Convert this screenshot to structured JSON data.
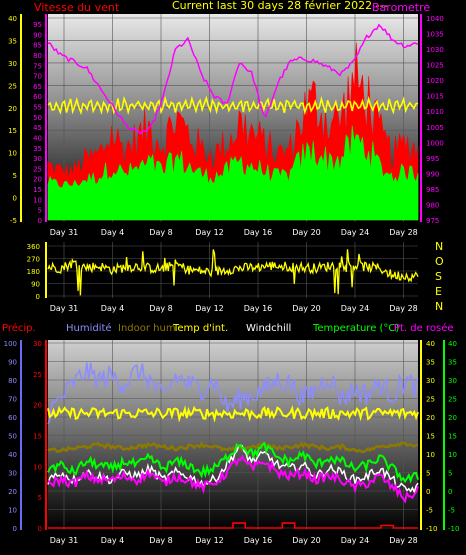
{
  "header": {
    "wind_label": "Vitesse du vent",
    "title": "Current last 30 days 28 février 2022 ---",
    "baro_label": "Barometre"
  },
  "footer_legend": {
    "precip": "Précip.",
    "humidity": "Humidité",
    "indoor_hum": "Indoor hum",
    "indoor_temp": "Temp d'int.",
    "windchill": "Windchill",
    "temperature": "Temperature (°C)",
    "dewpoint": "Pt. de rosée"
  },
  "compass": [
    "N",
    "O",
    "S",
    "E",
    "N"
  ],
  "colors": {
    "wind": "#ff0000",
    "wind_avg": "#00ff00",
    "barometer": "#ff00ff",
    "yellow_series": "#ffff00",
    "humidity": "#8c8cff",
    "indoor_hum": "#8c7a00",
    "temperature": "#00ff00",
    "windchill": "#ffffff",
    "dewpoint": "#ff00ff",
    "rain": "#ff0000"
  },
  "chart_data": [
    {
      "type": "line",
      "x_tick_labels": [
        "Day 31",
        "Day 4",
        "Day 8",
        "Day 12",
        "Day 16",
        "Day 20",
        "Day 24",
        "Day 28"
      ],
      "left_axis": {
        "ticks": [
          -5,
          0,
          5,
          10,
          15,
          20,
          25,
          30,
          35,
          40
        ],
        "ylim": [
          -5,
          40
        ]
      },
      "right_axis": {
        "ticks": [
          975,
          980,
          985,
          990,
          995,
          1000,
          1005,
          1010,
          1015,
          1020,
          1025,
          1030,
          1035,
          1040
        ],
        "ylim": [
          975,
          1040
        ]
      },
      "mid_axis": {
        "ticks": [
          0,
          5,
          10,
          15,
          20,
          25,
          30,
          35,
          40,
          45,
          50,
          55,
          60,
          65,
          70,
          75,
          80,
          85,
          90,
          95
        ]
      },
      "series": [
        {
          "name": "Vitesse du vent",
          "axis": "left",
          "values": [
            6,
            5,
            5,
            7,
            8,
            12,
            9,
            11,
            13,
            10,
            15,
            12,
            9,
            8,
            10,
            14,
            12,
            10,
            8,
            9,
            16,
            18,
            14,
            15,
            22,
            19,
            12,
            8,
            10,
            9
          ]
        },
        {
          "name": "Barometre",
          "axis": "right",
          "values": [
            1032,
            1028,
            1026,
            1024,
            1018,
            1012,
            1006,
            1003,
            1004,
            1014,
            1030,
            1033,
            1022,
            1015,
            1012,
            1026,
            1022,
            1007,
            1019,
            1026,
            1027,
            1026,
            1024,
            1022,
            1026,
            1034,
            1038,
            1033,
            1031,
            1032
          ]
        }
      ]
    },
    {
      "type": "line",
      "x_tick_labels": [
        "Day 31",
        "Day 4",
        "Day 8",
        "Day 12",
        "Day 16",
        "Day 20",
        "Day 24",
        "Day 28"
      ],
      "left_axis": {
        "ticks": [
          0,
          90,
          180,
          270,
          360
        ],
        "ylim": [
          0,
          360
        ]
      },
      "series": [
        {
          "values": [
            210,
            200,
            240,
            205,
            215,
            190,
            205,
            215,
            200,
            195,
            230,
            190,
            180,
            170,
            190,
            200,
            205,
            215,
            220,
            210,
            205,
            200,
            215,
            225,
            220,
            210,
            200,
            150,
            145,
            140
          ]
        }
      ]
    },
    {
      "type": "line",
      "x_tick_labels": [
        "Day 31",
        "Day 4",
        "Day 8",
        "Day 12",
        "Day 16",
        "Day 20",
        "Day 24",
        "Day 28"
      ],
      "left_axis_1": {
        "ticks": [
          0,
          10,
          20,
          30,
          40,
          50,
          60,
          70,
          80,
          90,
          100
        ],
        "ylim": [
          0,
          100
        ]
      },
      "left_axis_2": {
        "ticks": [
          0,
          5,
          10,
          15,
          20,
          25,
          30
        ],
        "ylim": [
          0,
          30
        ]
      },
      "right_axis_1": {
        "ticks": [
          -10,
          -5,
          0,
          5,
          10,
          15,
          20,
          25,
          30,
          35,
          40
        ],
        "ylim": [
          -10,
          40
        ]
      },
      "right_axis_2": {
        "ticks": [
          -10,
          -5,
          0,
          5,
          10,
          15,
          20,
          25,
          30,
          35,
          40
        ],
        "ylim": [
          -10,
          40
        ]
      },
      "series": [
        {
          "name": "Humidité",
          "axis": "left1",
          "values": [
            62,
            70,
            78,
            85,
            80,
            82,
            78,
            85,
            80,
            70,
            82,
            78,
            75,
            80,
            65,
            70,
            72,
            75,
            80,
            78,
            70,
            75,
            82,
            70,
            75,
            72,
            78,
            72,
            80,
            75
          ]
        },
        {
          "name": "Indoor hum",
          "axis": "left1",
          "values": [
            42,
            42,
            43,
            44,
            45,
            44,
            43,
            44,
            45,
            44,
            43,
            44,
            45,
            44,
            42,
            43,
            44,
            45,
            43,
            44,
            45,
            44,
            43,
            44,
            42,
            42,
            44,
            45,
            46,
            44
          ]
        },
        {
          "name": "Temp d'int.",
          "axis": "right1",
          "values": [
            21,
            21,
            21,
            21,
            21,
            21,
            21,
            21,
            21,
            21,
            21,
            21,
            21,
            21,
            21,
            21,
            21,
            21,
            21,
            21,
            21,
            21,
            21,
            21,
            21,
            21,
            21,
            21,
            21,
            21
          ]
        },
        {
          "name": "Temperature (°C)",
          "axis": "right1",
          "values": [
            6,
            7,
            5,
            8,
            7,
            6,
            8,
            7,
            9,
            6,
            8,
            7,
            5,
            6,
            9,
            13,
            10,
            12,
            9,
            8,
            10,
            7,
            9,
            8,
            6,
            7,
            9,
            6,
            3,
            4
          ]
        },
        {
          "name": "Windchill",
          "axis": "right1",
          "values": [
            3,
            5,
            3,
            5,
            4,
            3,
            5,
            4,
            6,
            3,
            5,
            4,
            2,
            3,
            7,
            12,
            8,
            10,
            7,
            6,
            7,
            4,
            6,
            5,
            3,
            4,
            6,
            3,
            0,
            1
          ]
        },
        {
          "name": "Pt. de rosée",
          "axis": "right1",
          "values": [
            2,
            3,
            2,
            4,
            3,
            3,
            4,
            3,
            5,
            2,
            4,
            3,
            1,
            2,
            5,
            9,
            6,
            8,
            5,
            4,
            5,
            3,
            4,
            3,
            1,
            2,
            4,
            1,
            -2,
            0
          ]
        },
        {
          "name": "Précip.",
          "axis": "left2",
          "values": [
            0,
            0,
            0,
            0,
            0,
            0,
            0,
            0,
            0,
            0,
            0,
            0,
            0,
            0,
            0,
            0.8,
            0,
            0,
            0,
            0.8,
            0,
            0,
            0,
            0,
            0,
            0,
            0,
            0.4,
            0,
            0
          ]
        }
      ]
    }
  ]
}
